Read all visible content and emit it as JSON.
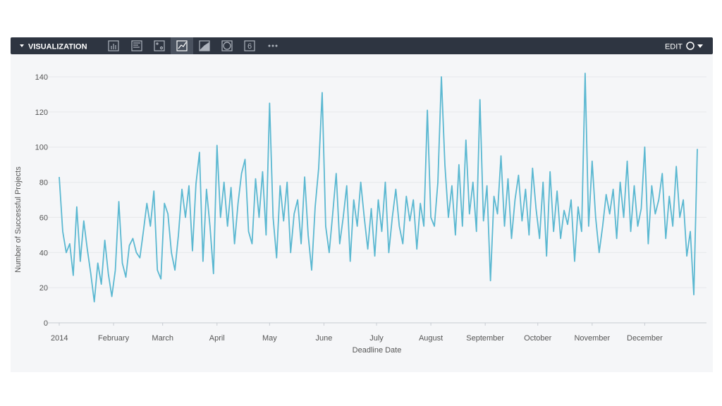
{
  "toolbar": {
    "title": "VISUALIZATION",
    "edit": "EDIT",
    "icon_label": "6"
  },
  "chart_data": {
    "type": "line",
    "x_label": "Deadline Date",
    "y_label": "Number of Successful Projects",
    "xlim": [
      0,
      364
    ],
    "ylim": [
      0,
      140
    ],
    "yticks": [
      0,
      20,
      40,
      60,
      80,
      100,
      120,
      140
    ],
    "xticks": [
      {
        "value": 0,
        "label": "2014"
      },
      {
        "value": 31,
        "label": "February"
      },
      {
        "value": 59,
        "label": "March"
      },
      {
        "value": 90,
        "label": "April"
      },
      {
        "value": 120,
        "label": "May"
      },
      {
        "value": 151,
        "label": "June"
      },
      {
        "value": 181,
        "label": "July"
      },
      {
        "value": 212,
        "label": "August"
      },
      {
        "value": 243,
        "label": "September"
      },
      {
        "value": 273,
        "label": "October"
      },
      {
        "value": 304,
        "label": "November"
      },
      {
        "value": 334,
        "label": "December"
      }
    ],
    "grid": true,
    "x": [
      0,
      2,
      4,
      6,
      8,
      10,
      12,
      14,
      16,
      18,
      20,
      22,
      24,
      26,
      28,
      30,
      32,
      34,
      36,
      38,
      40,
      42,
      44,
      46,
      48,
      50,
      52,
      54,
      56,
      58,
      60,
      62,
      64,
      66,
      68,
      70,
      72,
      74,
      76,
      78,
      80,
      82,
      84,
      86,
      88,
      90,
      92,
      94,
      96,
      98,
      100,
      102,
      104,
      106,
      108,
      110,
      112,
      114,
      116,
      118,
      120,
      122,
      124,
      126,
      128,
      130,
      132,
      134,
      136,
      138,
      140,
      142,
      144,
      146,
      148,
      150,
      152,
      154,
      156,
      158,
      160,
      162,
      164,
      166,
      168,
      170,
      172,
      174,
      176,
      178,
      180,
      182,
      184,
      186,
      188,
      190,
      192,
      194,
      196,
      198,
      200,
      202,
      204,
      206,
      208,
      210,
      212,
      214,
      216,
      218,
      220,
      222,
      224,
      226,
      228,
      230,
      232,
      234,
      236,
      238,
      240,
      242,
      244,
      246,
      248,
      250,
      252,
      254,
      256,
      258,
      260,
      262,
      264,
      266,
      268,
      270,
      272,
      274,
      276,
      278,
      280,
      282,
      284,
      286,
      288,
      290,
      292,
      294,
      296,
      298,
      300,
      302,
      304,
      306,
      308,
      310,
      312,
      314,
      316,
      318,
      320,
      322,
      324,
      326,
      328,
      330,
      332,
      334,
      336,
      338,
      340,
      342,
      344,
      346,
      348,
      350,
      352,
      354,
      356,
      358,
      360,
      362,
      364
    ],
    "series": [
      {
        "color": "#5bb8d1",
        "values": [
          83,
          52,
          40,
          45,
          27,
          66,
          35,
          58,
          42,
          28,
          12,
          34,
          22,
          47,
          28,
          15,
          30,
          69,
          34,
          26,
          44,
          48,
          40,
          37,
          52,
          68,
          55,
          75,
          30,
          25,
          68,
          62,
          40,
          30,
          50,
          76,
          60,
          78,
          41,
          79,
          97,
          35,
          76,
          55,
          28,
          101,
          60,
          80,
          55,
          77,
          45,
          68,
          85,
          93,
          52,
          45,
          82,
          60,
          86,
          50,
          125,
          60,
          37,
          78,
          58,
          80,
          40,
          62,
          70,
          45,
          83,
          50,
          30,
          66,
          88,
          131,
          55,
          40,
          62,
          85,
          45,
          60,
          78,
          35,
          70,
          55,
          80,
          60,
          42,
          65,
          38,
          70,
          52,
          80,
          40,
          60,
          76,
          55,
          45,
          72,
          58,
          70,
          42,
          68,
          55,
          121,
          60,
          55,
          80,
          140,
          90,
          60,
          78,
          50,
          90,
          55,
          104,
          62,
          80,
          52,
          127,
          58,
          78,
          24,
          72,
          62,
          95,
          55,
          82,
          48,
          70,
          84,
          58,
          76,
          50,
          88,
          65,
          48,
          80,
          38,
          86,
          52,
          75,
          48,
          64,
          56,
          70,
          35,
          66,
          52,
          142,
          55,
          92,
          60,
          40,
          55,
          73,
          62,
          76,
          48,
          80,
          60,
          92,
          52,
          78,
          55,
          65,
          100,
          45,
          78,
          62,
          70,
          85,
          48,
          72,
          55,
          89,
          60,
          70,
          38,
          52,
          16,
          99
        ]
      }
    ]
  }
}
